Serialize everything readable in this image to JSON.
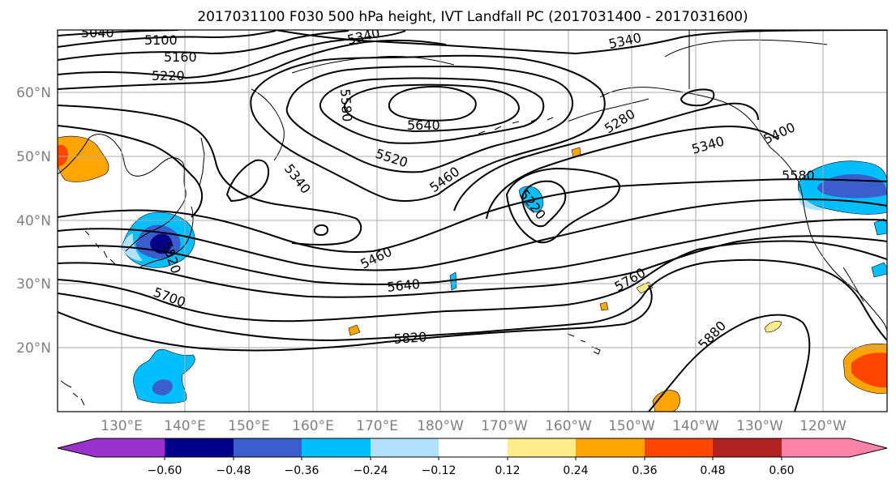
{
  "title": "2017031100 F030 500 hPa height, IVT Landfall PC (2017031400 - 2017031600)",
  "map": {
    "lat_labels": [
      "60°N",
      "50°N",
      "40°N",
      "30°N",
      "20°N"
    ],
    "lon_labels": [
      "130°E",
      "140°E",
      "150°E",
      "160°E",
      "170°E",
      "180°W",
      "170°W",
      "160°W",
      "150°W",
      "140°W",
      "130°W",
      "120°W"
    ],
    "contour_labels": [
      "5040",
      "5100",
      "5160",
      "5220",
      "5340",
      "5340",
      "5580",
      "5640",
      "5280",
      "5340",
      "5400",
      "5520",
      "5460",
      "5340",
      "5220",
      "5580",
      "5520",
      "5460",
      "5640",
      "5700",
      "5760",
      "5820",
      "5880"
    ],
    "colors": {
      "grid": "#aaaaaa",
      "contour": "#000000",
      "axis_label": "#808080"
    }
  },
  "colorbar": {
    "ticks": [
      "−0.60",
      "−0.48",
      "−0.36",
      "−0.24",
      "−0.12",
      "0.12",
      "0.24",
      "0.36",
      "0.48",
      "0.60"
    ],
    "colors": [
      "#9932cc",
      "#00008b",
      "#3a5fcd",
      "#00bfff",
      "#b0e2ff",
      "#ffffff",
      "#ffec8b",
      "#ffa500",
      "#ff4500",
      "#b22222",
      "#ff82ab"
    ]
  }
}
